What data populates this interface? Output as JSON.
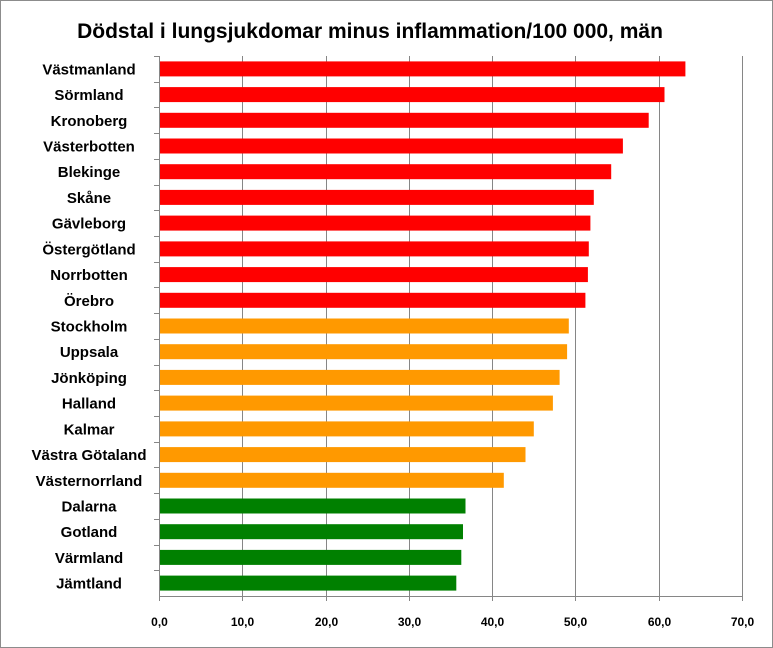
{
  "chart_data": {
    "type": "bar",
    "orientation": "horizontal",
    "title": "Dödstal i lungsjukdomar minus inflammation/100 000, män",
    "xlabel": "",
    "ylabel": "",
    "xlim": [
      0,
      70
    ],
    "x_ticks": [
      "0,0",
      "10,0",
      "20,0",
      "30,0",
      "40,0",
      "50,0",
      "60,0",
      "70,0"
    ],
    "x_tick_values": [
      0,
      10,
      20,
      30,
      40,
      50,
      60,
      70
    ],
    "grid": "vertical",
    "legend": "none",
    "categories": [
      "Västmanland",
      "Sörmland",
      "Kronoberg",
      "Västerbotten",
      "Blekinge",
      "Skåne",
      "Gävleborg",
      "Östergötland",
      "Norrbotten",
      "Örebro",
      "Stockholm",
      "Uppsala",
      "Jönköping",
      "Halland",
      "Kalmar",
      "Västra Götaland",
      "Västernorrland",
      "Dalarna",
      "Gotland",
      "Värmland",
      "Jämtland"
    ],
    "values": [
      63.2,
      60.7,
      58.8,
      55.7,
      54.3,
      52.2,
      51.8,
      51.6,
      51.5,
      51.2,
      49.2,
      49.0,
      48.1,
      47.3,
      45.0,
      44.0,
      41.4,
      36.8,
      36.5,
      36.3,
      35.7
    ],
    "colors": [
      "#ff0000",
      "#ff0000",
      "#ff0000",
      "#ff0000",
      "#ff0000",
      "#ff0000",
      "#ff0000",
      "#ff0000",
      "#ff0000",
      "#ff0000",
      "#ff9900",
      "#ff9900",
      "#ff9900",
      "#ff9900",
      "#ff9900",
      "#ff9900",
      "#ff9900",
      "#008000",
      "#008000",
      "#008000",
      "#008000"
    ]
  }
}
